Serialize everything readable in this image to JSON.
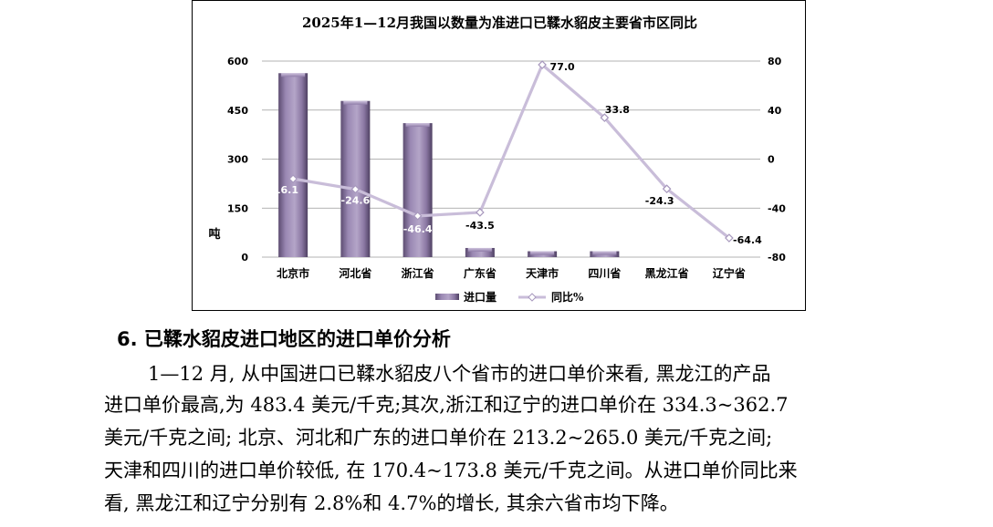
{
  "chart_data": {
    "type": "bar",
    "title": "2025年1—12月我国以数量为准进口已鞣水貂皮主要省市区同比",
    "categories": [
      "北京市",
      "河北省",
      "浙江省",
      "广东省",
      "天津市",
      "四川省",
      "黑龙江省",
      "辽宁省"
    ],
    "series": [
      {
        "name": "进口量",
        "type": "bar",
        "axis": "left",
        "values": [
          563,
          478,
          410,
          28,
          18,
          18,
          1,
          1
        ],
        "color": "#8e7aa6"
      },
      {
        "name": "同比%",
        "type": "line",
        "axis": "right",
        "values": [
          -16.1,
          -24.6,
          -46.4,
          -43.5,
          77.0,
          33.8,
          -24.3,
          -64.4
        ],
        "labels": [
          "-16.1",
          "-24.6",
          "-46.4",
          "-43.5",
          "77.0",
          "33.8",
          "-24.3",
          "-64.4"
        ],
        "color": "#c9bdd9"
      }
    ],
    "ylabel": "吨",
    "ylim": [
      0,
      600
    ],
    "y_ticks": [
      "0",
      "150",
      "300",
      "450",
      "600"
    ],
    "y2lim": [
      -80,
      80
    ],
    "y2_ticks": [
      "-80",
      "-40",
      "0",
      "40",
      "80"
    ],
    "grid": true,
    "legend": "bottom"
  },
  "section": {
    "heading": "6. 已鞣水貂皮进口地区的进口单价分析"
  },
  "paragraph": {
    "lines": [
      "1—12 月, 从中国进口已鞣水貂皮八个省市的进口单价来看, 黑龙江的产品",
      "进口单价最高,为 483.4 美元/千克;其次,浙江和辽宁的进口单价在 334.3~362.7",
      "美元/千克之间; 北京、河北和广东的进口单价在 213.2~265.0 美元/千克之间;",
      "天津和四川的进口单价较低, 在 170.4~173.8 美元/千克之间。从进口单价同比来",
      "看, 黑龙江和辽宁分别有 2.8%和 4.7%的增长, 其余六省市均下降。"
    ]
  }
}
